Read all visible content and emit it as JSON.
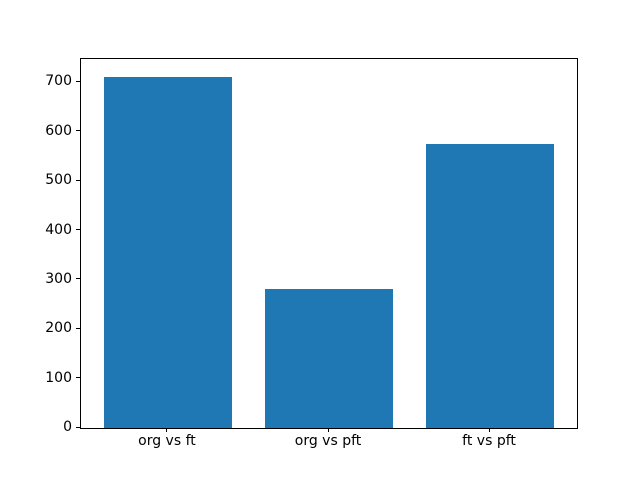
{
  "chart_data": {
    "type": "bar",
    "categories": [
      "org vs ft",
      "org vs pft",
      "ft vs pft"
    ],
    "values": [
      712,
      282,
      575
    ],
    "yticks": [
      0,
      100,
      200,
      300,
      400,
      500,
      600,
      700
    ],
    "ylim": [
      0,
      747.6
    ],
    "bar_width_fraction": 0.8,
    "grid": false,
    "legend": null,
    "colors": {
      "bar": "#1f77b4",
      "spine": "#000000",
      "text": "#000000",
      "background": "#ffffff"
    }
  }
}
